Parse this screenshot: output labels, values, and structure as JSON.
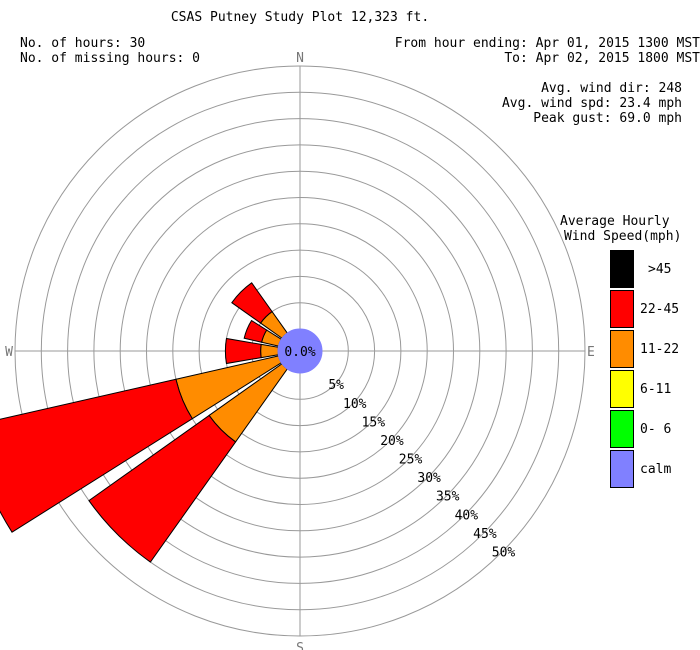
{
  "title": "CSAS Putney Study Plot 12,323 ft.",
  "stats_left": {
    "hours": "No. of hours: 30",
    "missing": "No. of missing hours: 0"
  },
  "stats_right": {
    "from": "From hour ending: Apr 01, 2015 1300 MST",
    "to": "To: Apr 02, 2015 1800 MST",
    "avg_dir": "Avg. wind dir: 248",
    "avg_spd": "Avg. wind spd: 23.4 mph",
    "peak": "Peak gust: 69.0 mph"
  },
  "legend": {
    "title_line1": "Average Hourly",
    "title_line2": "Wind Speed(mph)",
    "items": [
      {
        "label": ">45",
        "color": "#000000"
      },
      {
        "label": "22-45",
        "color": "#ff0000"
      },
      {
        "label": "11-22",
        "color": "#ff8c00"
      },
      {
        "label": "6-11",
        "color": "#ffff00"
      },
      {
        "label": "0- 6",
        "color": "#00ff00"
      },
      {
        "label": "calm",
        "color": "#8080ff"
      }
    ]
  },
  "chart_data": {
    "type": "wind_rose",
    "title": "CSAS Putney Study Plot 12,323 ft.",
    "directions": [
      "N",
      "E",
      "S",
      "W"
    ],
    "ring_labels": [
      "5%",
      "10%",
      "15%",
      "20%",
      "25%",
      "30%",
      "35%",
      "40%",
      "45%",
      "50%"
    ],
    "rmax_percent": 50,
    "calm_label": "0.0%",
    "sector_width_deg": 22.5,
    "sectors": [
      {
        "direction_deg": 247.5,
        "bands": [
          {
            "speed": "11-22",
            "percent": 20.0
          },
          {
            "speed": "22-45",
            "percent": 40.5
          }
        ]
      },
      {
        "direction_deg": 225,
        "bands": [
          {
            "speed": "11-22",
            "percent": 17.0
          },
          {
            "speed": "22-45",
            "percent": 28.0
          }
        ]
      },
      {
        "direction_deg": 270,
        "bands": [
          {
            "speed": "11-22",
            "percent": 3.3
          },
          {
            "speed": "22-45",
            "percent": 6.7
          }
        ]
      },
      {
        "direction_deg": 292.5,
        "bands": [
          {
            "speed": "11-22",
            "percent": 3.3
          },
          {
            "speed": "22-45",
            "percent": 3.4
          }
        ]
      },
      {
        "direction_deg": 315,
        "bands": [
          {
            "speed": "11-22",
            "percent": 5.0
          },
          {
            "speed": "22-45",
            "percent": 6.7
          }
        ]
      }
    ]
  }
}
